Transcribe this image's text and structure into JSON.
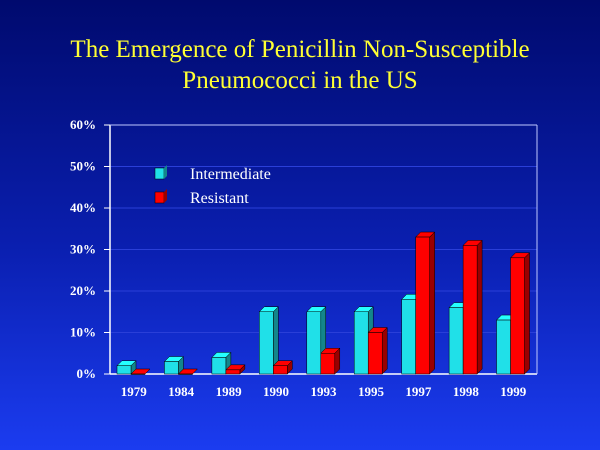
{
  "chart_data": {
    "type": "bar",
    "title": "The Emergence of Penicillin Non-Susceptible Pneumococci in the US",
    "title_lines": [
      "The Emergence of Penicillin Non-Susceptible",
      "Pneumococci in the US"
    ],
    "categories": [
      "1979",
      "1984",
      "1989",
      "1990",
      "1993",
      "1995",
      "1997",
      "1998",
      "1999"
    ],
    "series": [
      {
        "name": "Intermediate",
        "color": "#20e0e8",
        "values": [
          2,
          3,
          4,
          15,
          15,
          15,
          18,
          16,
          13
        ]
      },
      {
        "name": "Resistant",
        "color": "#ff0000",
        "values": [
          0,
          0,
          1,
          2,
          5,
          10,
          33,
          31,
          28
        ]
      }
    ],
    "xlabel": "",
    "ylabel": "",
    "ylim": [
      0,
      60
    ],
    "yticks": [
      "0%",
      "10%",
      "20%",
      "30%",
      "40%",
      "50%",
      "60%"
    ],
    "grid": true,
    "legend_position": "top-left",
    "colors": {
      "background": "#0a1fb0",
      "title": "#ffff33",
      "text": "#ffffff"
    }
  }
}
